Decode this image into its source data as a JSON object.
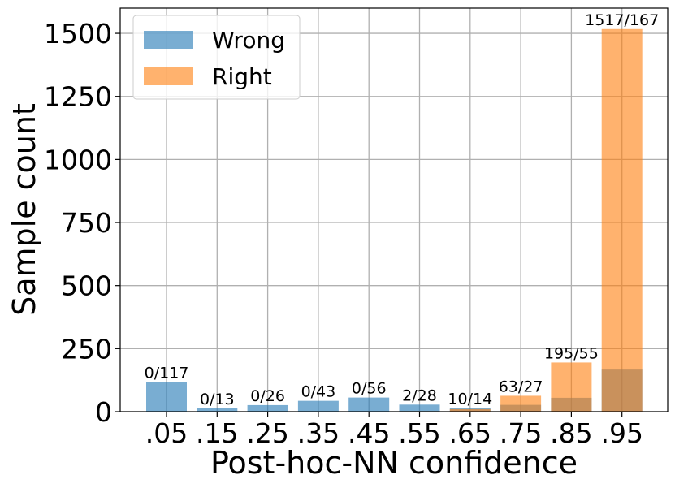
{
  "chart_data": {
    "type": "bar",
    "xlabel": "Post-hoc-NN confidence",
    "ylabel": "Sample count",
    "categories": [
      ".05",
      ".15",
      ".25",
      ".35",
      ".45",
      ".55",
      ".65",
      ".75",
      ".85",
      ".95"
    ],
    "series": [
      {
        "name": "Wrong",
        "color": "#1f77b4",
        "values": [
          117,
          13,
          26,
          43,
          56,
          28,
          14,
          27,
          55,
          167
        ]
      },
      {
        "name": "Right",
        "color": "#ff7f0e",
        "values": [
          0,
          0,
          0,
          0,
          0,
          2,
          10,
          63,
          195,
          1517
        ]
      }
    ],
    "bar_labels": [
      "0/117",
      "0/13",
      "0/26",
      "0/43",
      "0/56",
      "2/28",
      "10/14",
      "63/27",
      "195/55",
      "1517/167"
    ],
    "ylim": [
      0,
      1600
    ],
    "yticks": [
      0,
      250,
      500,
      750,
      1000,
      1250,
      1500
    ],
    "grid": true,
    "legend_position": "top-left"
  }
}
